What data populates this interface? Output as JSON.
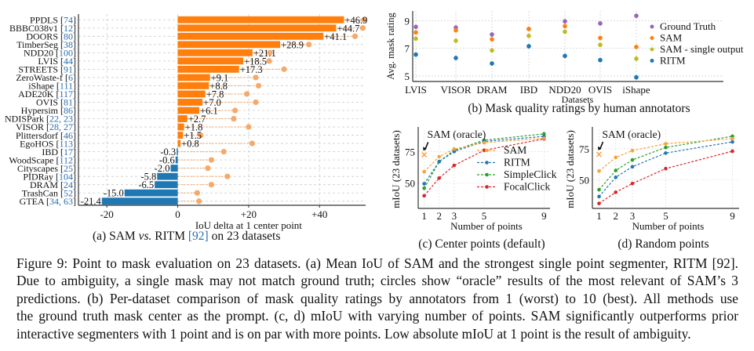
{
  "figure": {
    "caption_lines": [
      "Figure 9: Point to mask evaluation on 23 datasets. (a) Mean IoU of SAM and the strongest single point segmenter, RITM [92].",
      "Due to ambiguity, a single mask may not match ground truth; circles show “oracle” results of the most relevant of SAM’s 3",
      "predictions. (b) Per-dataset comparison of mask quality ratings by annotators from 1 (worst) to 10 (best). All methods use",
      "the ground truth mask center as the prompt. (c, d) mIoU with varying number of points. SAM significantly outperforms prior",
      "interactive segmenters with 1 point and is on par with more points. Low absolute mIoU at 1 point is the result of ambiguity."
    ],
    "subcaptions": {
      "a": "(a) SAM vs. RITM [92] on 23 datasets",
      "b": "(b) Mask quality ratings by human annotators",
      "c": "(c) Center points (default)",
      "d": "(d) Random points"
    }
  },
  "colors": {
    "positive": "#ff7f0e",
    "negative": "#1f77b4",
    "oracle": "#f5a96a",
    "ground_truth": "#9467bd",
    "sam": "#ff7f0e",
    "sam_single": "#bcbd22",
    "ritm": "#1f77b4",
    "simpleclick": "#2ca02c",
    "focalclick": "#d62728",
    "sam_line": "#f8a13a"
  },
  "chart_data": [
    {
      "id": "a",
      "type": "bar",
      "orientation": "horizontal",
      "title": "(a) SAM vs. RITM [92] on 23 datasets",
      "xlabel": "IoU delta at 1 center point",
      "ylabel": "",
      "xlim": [
        -28,
        53
      ],
      "xticks": [
        -20,
        0,
        20,
        40
      ],
      "xtick_labels": [
        "-20",
        "0",
        "+20",
        "+40"
      ],
      "grid": true,
      "categories": [
        {
          "name": "PPDLS",
          "refs": "74"
        },
        {
          "name": "BBBC038v1",
          "refs": "12"
        },
        {
          "name": "DOORS",
          "refs": "80"
        },
        {
          "name": "TimberSeg",
          "refs": "38"
        },
        {
          "name": "NDD20",
          "refs": "100"
        },
        {
          "name": "LVIS",
          "refs": "44"
        },
        {
          "name": "STREETS",
          "refs": "91"
        },
        {
          "name": "ZeroWaste-f",
          "refs": "6"
        },
        {
          "name": "iShape",
          "refs": "111"
        },
        {
          "name": "ADE20K",
          "refs": "117"
        },
        {
          "name": "OVIS",
          "refs": "81"
        },
        {
          "name": "Hypersim",
          "refs": "86"
        },
        {
          "name": "NDISPark",
          "refs": "22, 23"
        },
        {
          "name": "VISOR",
          "refs": "28, 27"
        },
        {
          "name": "Plittersdorf",
          "refs": "46"
        },
        {
          "name": "EgoHOS",
          "refs": "113"
        },
        {
          "name": "IBD",
          "refs": "17"
        },
        {
          "name": "WoodScape",
          "refs": "112"
        },
        {
          "name": "Cityscapes",
          "refs": "25"
        },
        {
          "name": "PIDRay",
          "refs": "104"
        },
        {
          "name": "DRAM",
          "refs": "24"
        },
        {
          "name": "TrashCan",
          "refs": "52"
        },
        {
          "name": "GTEA",
          "refs": "34, 63"
        }
      ],
      "values": [
        46.9,
        44.7,
        41.1,
        28.9,
        21.1,
        18.5,
        17.3,
        9.1,
        8.8,
        7.8,
        7.0,
        6.1,
        2.7,
        1.8,
        1.5,
        0.8,
        -0.3,
        -0.6,
        -2.0,
        -5.8,
        -6.5,
        -15.0,
        -21.4
      ],
      "value_labels": [
        "+46.9",
        "+44.7",
        "+41.1",
        "+28.9",
        "+21.1",
        "+18.5",
        "+17.3",
        "+9.1",
        "+8.8",
        "+7.8",
        "+7.0",
        "+6.1",
        "+2.7",
        "+1.8",
        "+1.5",
        "+0.8",
        "-0.3",
        "-0.6",
        "-2.0",
        "-5.8",
        "-6.5",
        "-15.0",
        "-21.4"
      ],
      "oracle_values": [
        52.5,
        52.2,
        50.0,
        37.0,
        26.0,
        25.8,
        30.0,
        22.0,
        22.8,
        19.5,
        22.0,
        16.2,
        15.8,
        20.0,
        6.5,
        21.0,
        13.0,
        9.5,
        8.5,
        14.0,
        9.5,
        5.5,
        6.0
      ],
      "oracle_label": "oracle"
    },
    {
      "id": "b",
      "type": "scatter",
      "title": "(b) Mask quality ratings by human annotators",
      "xlabel": "Datasets",
      "ylabel": "Avg. mask rating",
      "ylim": [
        4.6,
        9.7
      ],
      "yticks": [
        5,
        7,
        9
      ],
      "grid": true,
      "legend_position": "right",
      "categories": [
        "LVIS",
        "VISOR",
        "DRAM",
        "IBD",
        "NDD20",
        "OVIS",
        "iShape"
      ],
      "series": [
        {
          "name": "Ground Truth",
          "color_key": "ground_truth",
          "values": [
            8.55,
            8.5,
            8.0,
            8.4,
            8.95,
            8.8,
            9.35
          ]
        },
        {
          "name": "SAM",
          "color_key": "sam",
          "values": [
            8.15,
            8.3,
            7.65,
            8.4,
            8.6,
            7.75,
            7.1
          ]
        },
        {
          "name": "SAM - single output",
          "color_key": "sam_single",
          "values": [
            7.7,
            7.55,
            6.85,
            7.9,
            8.2,
            7.25,
            6.25
          ]
        },
        {
          "name": "RITM",
          "color_key": "ritm",
          "values": [
            6.55,
            6.3,
            5.9,
            7.15,
            6.45,
            6.15,
            4.9
          ]
        }
      ]
    },
    {
      "id": "c",
      "type": "line",
      "title": "(c) Center points (default)",
      "xlabel": "Number of points",
      "ylabel": "mIoU (23 datasets)",
      "x": [
        1,
        2,
        3,
        5,
        9
      ],
      "xlim": [
        0.6,
        9.4
      ],
      "ylim": [
        30,
        92
      ],
      "yticks": [
        50,
        75
      ],
      "grid": true,
      "legend_position": "lower-right",
      "annotation": {
        "text": "SAM (oracle)",
        "x": 1,
        "y": 72.5
      },
      "series": [
        {
          "name": "SAM",
          "color_key": "sam_line",
          "values": [
            59,
            71,
            77,
            82,
            85.5
          ]
        },
        {
          "name": "RITM",
          "color_key": "ritm",
          "values": [
            49.5,
            67,
            75,
            83,
            87
          ]
        },
        {
          "name": "SimpleClick",
          "color_key": "simpleclick",
          "values": [
            46,
            67,
            76,
            84,
            89
          ]
        },
        {
          "name": "FocalClick",
          "color_key": "focalclick",
          "values": [
            40,
            54,
            64,
            76,
            85
          ]
        }
      ]
    },
    {
      "id": "d",
      "type": "line",
      "title": "(d) Random points",
      "xlabel": "Number of points",
      "ylabel": "mIoU (23 datasets)",
      "x": [
        1,
        2,
        3,
        5,
        9
      ],
      "xlim": [
        0.6,
        9.4
      ],
      "ylim": [
        27,
        90
      ],
      "yticks": [
        50,
        75
      ],
      "grid": true,
      "annotation": {
        "text": "SAM (oracle)",
        "x": 1,
        "y": 70.5
      },
      "series": [
        {
          "name": "SAM",
          "color_key": "sam_line",
          "values": [
            57,
            68,
            73.5,
            79,
            83
          ]
        },
        {
          "name": "RITM",
          "color_key": "ritm",
          "values": [
            36.5,
            52,
            60.5,
            71.5,
            80.5
          ]
        },
        {
          "name": "SimpleClick",
          "color_key": "simpleclick",
          "values": [
            42,
            57.5,
            66,
            76,
            85
          ]
        },
        {
          "name": "FocalClick",
          "color_key": "focalclick",
          "values": [
            31,
            40,
            47,
            59,
            73
          ]
        }
      ]
    }
  ]
}
